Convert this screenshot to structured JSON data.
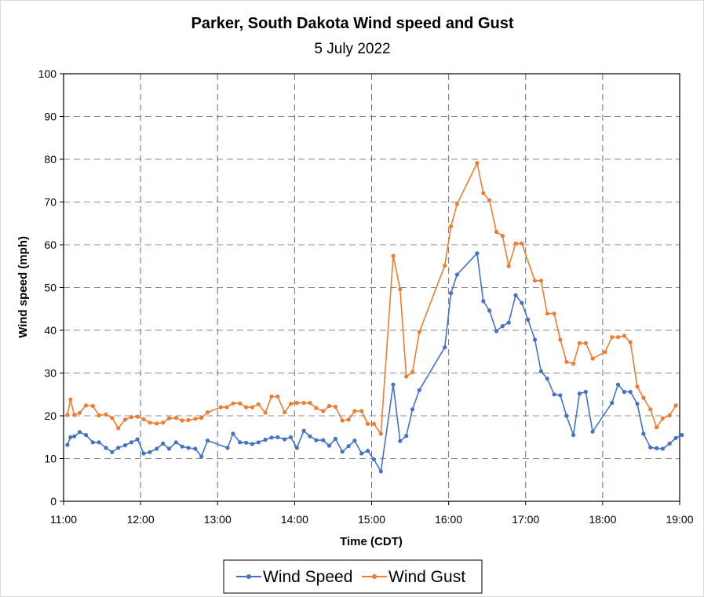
{
  "chart_data": {
    "type": "line",
    "title": "Parker, South Dakota Wind speed and Gust",
    "subtitle": "5 July 2022",
    "xlabel": "Time (CDT)",
    "ylabel": "Wind speed (mph)",
    "xlim": [
      11,
      19
    ],
    "ylim": [
      0,
      100
    ],
    "x_ticks": [
      {
        "v": 11,
        "label": "11:00"
      },
      {
        "v": 12,
        "label": "12:00"
      },
      {
        "v": 13,
        "label": "13:00"
      },
      {
        "v": 14,
        "label": "14:00"
      },
      {
        "v": 15,
        "label": "15:00"
      },
      {
        "v": 16,
        "label": "16:00"
      },
      {
        "v": 17,
        "label": "17:00"
      },
      {
        "v": 18,
        "label": "18:00"
      },
      {
        "v": 19,
        "label": "19:00"
      }
    ],
    "y_ticks": [
      0,
      10,
      20,
      30,
      40,
      50,
      60,
      70,
      80,
      90,
      100
    ],
    "grid": "dashed: horizontal gray, vertical blue",
    "legend": "bottom",
    "series": [
      {
        "name": "Wind Speed",
        "color": "#4472C4",
        "points": [
          [
            11.05,
            13.2
          ],
          [
            11.09,
            15.0
          ],
          [
            11.14,
            15.2
          ],
          [
            11.21,
            16.2
          ],
          [
            11.29,
            15.5
          ],
          [
            11.38,
            13.8
          ],
          [
            11.46,
            13.8
          ],
          [
            11.55,
            12.5
          ],
          [
            11.63,
            11.5
          ],
          [
            11.71,
            12.5
          ],
          [
            11.8,
            13.1
          ],
          [
            11.88,
            13.8
          ],
          [
            11.96,
            14.5
          ],
          [
            12.04,
            11.2
          ],
          [
            12.12,
            11.5
          ],
          [
            12.21,
            12.3
          ],
          [
            12.29,
            13.5
          ],
          [
            12.37,
            12.3
          ],
          [
            12.46,
            13.8
          ],
          [
            12.54,
            12.8
          ],
          [
            12.62,
            12.5
          ],
          [
            12.71,
            12.3
          ],
          [
            12.79,
            10.5
          ],
          [
            12.87,
            14.2
          ],
          [
            13.13,
            12.5
          ],
          [
            13.2,
            15.8
          ],
          [
            13.29,
            13.8
          ],
          [
            13.37,
            13.7
          ],
          [
            13.45,
            13.4
          ],
          [
            13.53,
            13.8
          ],
          [
            13.62,
            14.4
          ],
          [
            13.7,
            14.9
          ],
          [
            13.78,
            15.0
          ],
          [
            13.87,
            14.5
          ],
          [
            13.95,
            15.0
          ],
          [
            14.03,
            12.5
          ],
          [
            14.12,
            16.5
          ],
          [
            14.2,
            15.2
          ],
          [
            14.28,
            14.3
          ],
          [
            14.37,
            14.3
          ],
          [
            14.45,
            13.0
          ],
          [
            14.53,
            14.6
          ],
          [
            14.62,
            11.6
          ],
          [
            14.7,
            12.9
          ],
          [
            14.78,
            14.2
          ],
          [
            14.87,
            11.2
          ],
          [
            14.95,
            11.8
          ],
          [
            15.03,
            9.8
          ],
          [
            15.12,
            7.0
          ],
          [
            15.28,
            27.3
          ],
          [
            15.37,
            14.1
          ],
          [
            15.45,
            15.3
          ],
          [
            15.53,
            21.5
          ],
          [
            15.62,
            26.0
          ],
          [
            15.95,
            36.0
          ],
          [
            16.03,
            48.7
          ],
          [
            16.11,
            53.0
          ],
          [
            16.37,
            58.0
          ],
          [
            16.45,
            46.8
          ],
          [
            16.53,
            44.6
          ],
          [
            16.62,
            39.8
          ],
          [
            16.7,
            41.0
          ],
          [
            16.78,
            41.8
          ],
          [
            16.87,
            48.2
          ],
          [
            16.95,
            46.4
          ],
          [
            17.03,
            42.5
          ],
          [
            17.12,
            37.8
          ],
          [
            17.2,
            30.4
          ],
          [
            17.28,
            28.7
          ],
          [
            17.37,
            25.0
          ],
          [
            17.45,
            24.8
          ],
          [
            17.53,
            20.0
          ],
          [
            17.62,
            15.5
          ],
          [
            17.7,
            25.2
          ],
          [
            17.78,
            25.6
          ],
          [
            17.87,
            16.3
          ],
          [
            18.12,
            23.0
          ],
          [
            18.2,
            27.3
          ],
          [
            18.28,
            25.6
          ],
          [
            18.36,
            25.6
          ],
          [
            18.45,
            22.8
          ],
          [
            18.53,
            15.8
          ],
          [
            18.62,
            12.6
          ],
          [
            18.7,
            12.4
          ],
          [
            18.78,
            12.3
          ],
          [
            18.87,
            13.5
          ],
          [
            18.95,
            14.8
          ],
          [
            19.03,
            15.5
          ]
        ]
      },
      {
        "name": "Wind Gust",
        "color": "#ED7D31",
        "points": [
          [
            11.05,
            20.2
          ],
          [
            11.09,
            23.8
          ],
          [
            11.14,
            20.2
          ],
          [
            11.21,
            20.7
          ],
          [
            11.29,
            22.4
          ],
          [
            11.38,
            22.3
          ],
          [
            11.46,
            20.1
          ],
          [
            11.55,
            20.3
          ],
          [
            11.63,
            19.5
          ],
          [
            11.71,
            17.1
          ],
          [
            11.8,
            19.1
          ],
          [
            11.88,
            19.7
          ],
          [
            11.96,
            19.8
          ],
          [
            12.04,
            19.2
          ],
          [
            12.12,
            18.4
          ],
          [
            12.21,
            18.2
          ],
          [
            12.29,
            18.4
          ],
          [
            12.37,
            19.4
          ],
          [
            12.46,
            19.5
          ],
          [
            12.54,
            18.9
          ],
          [
            12.62,
            19.0
          ],
          [
            12.71,
            19.3
          ],
          [
            12.79,
            19.5
          ],
          [
            12.87,
            20.8
          ],
          [
            13.04,
            22.0
          ],
          [
            13.12,
            22.0
          ],
          [
            13.2,
            22.9
          ],
          [
            13.29,
            22.9
          ],
          [
            13.37,
            22.0
          ],
          [
            13.45,
            22.0
          ],
          [
            13.53,
            22.7
          ],
          [
            13.62,
            20.7
          ],
          [
            13.7,
            24.5
          ],
          [
            13.78,
            24.5
          ],
          [
            13.87,
            20.8
          ],
          [
            13.95,
            22.8
          ],
          [
            14.03,
            23.0
          ],
          [
            14.12,
            23.0
          ],
          [
            14.2,
            23.0
          ],
          [
            14.28,
            21.8
          ],
          [
            14.37,
            21.1
          ],
          [
            14.45,
            22.3
          ],
          [
            14.53,
            22.1
          ],
          [
            14.62,
            18.9
          ],
          [
            14.7,
            19.1
          ],
          [
            14.78,
            21.1
          ],
          [
            14.87,
            21.1
          ],
          [
            14.95,
            18.1
          ],
          [
            15.03,
            18.1
          ],
          [
            15.12,
            15.8
          ],
          [
            15.28,
            57.4
          ],
          [
            15.37,
            49.6
          ],
          [
            15.45,
            29.2
          ],
          [
            15.53,
            30.2
          ],
          [
            15.62,
            39.6
          ],
          [
            15.95,
            55.1
          ],
          [
            16.03,
            64.3
          ],
          [
            16.11,
            69.5
          ],
          [
            16.37,
            79.1
          ],
          [
            16.45,
            72.1
          ],
          [
            16.53,
            70.4
          ],
          [
            16.62,
            63.0
          ],
          [
            16.7,
            62.1
          ],
          [
            16.78,
            55.0
          ],
          [
            16.87,
            60.3
          ],
          [
            16.95,
            60.3
          ],
          [
            17.12,
            51.6
          ],
          [
            17.2,
            51.6
          ],
          [
            17.28,
            43.9
          ],
          [
            17.37,
            43.9
          ],
          [
            17.45,
            37.8
          ],
          [
            17.53,
            32.6
          ],
          [
            17.62,
            32.2
          ],
          [
            17.7,
            37.0
          ],
          [
            17.78,
            37.0
          ],
          [
            17.87,
            33.4
          ],
          [
            18.03,
            34.9
          ],
          [
            18.12,
            38.4
          ],
          [
            18.2,
            38.4
          ],
          [
            18.28,
            38.7
          ],
          [
            18.36,
            37.2
          ],
          [
            18.45,
            26.8
          ],
          [
            18.53,
            24.2
          ],
          [
            18.62,
            21.5
          ],
          [
            18.7,
            17.3
          ],
          [
            18.78,
            19.4
          ],
          [
            18.87,
            20.1
          ],
          [
            18.95,
            22.4
          ]
        ]
      }
    ]
  }
}
